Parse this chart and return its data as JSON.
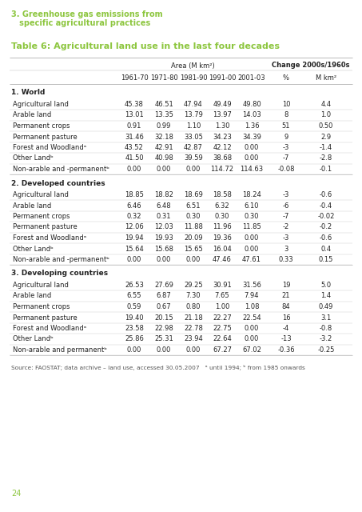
{
  "page_title_line1": "3. Greenhouse gas emissions from",
  "page_title_line2": "   specific agricultural practices",
  "table_title": "Table 6: Agricultural land use in the last four decades",
  "header_group1": "Area (M km²)",
  "header_group2": "Change 2000s/1960s",
  "col_headers": [
    "1961-70",
    "1971-80",
    "1981-90",
    "1991-00",
    "2001-03",
    "%",
    "M km²"
  ],
  "sections": [
    {
      "title": "1. World",
      "rows": [
        [
          "Agricultural land",
          "45.38",
          "46.51",
          "47.94",
          "49.49",
          "49.80",
          "10",
          "4.4"
        ],
        [
          "Arable land",
          "13.01",
          "13.35",
          "13.79",
          "13.97",
          "14.03",
          "8",
          "1.0"
        ],
        [
          "Permanent crops",
          "0.91",
          "0.99",
          "1.10",
          "1.30",
          "1.36",
          "51",
          "0.50"
        ],
        [
          "Permanent pasture",
          "31.46",
          "32.18",
          "33.05",
          "34.23",
          "34.39",
          "9",
          "2.9"
        ],
        [
          "Forest and Woodlandᵃ",
          "43.52",
          "42.91",
          "42.87",
          "42.12",
          "0.00",
          "-3",
          "-1.4"
        ],
        [
          "Other Landᵇ",
          "41.50",
          "40.98",
          "39.59",
          "38.68",
          "0.00",
          "-7",
          "-2.8"
        ],
        [
          "Non-arable and -permanentᵇ",
          "0.00",
          "0.00",
          "0.00",
          "114.72",
          "114.63",
          "-0.08",
          "-0.1"
        ]
      ]
    },
    {
      "title": "2. Developed countries",
      "rows": [
        [
          "Agricultural land",
          "18.85",
          "18.82",
          "18.69",
          "18.58",
          "18.24",
          "-3",
          "-0.6"
        ],
        [
          "Arable land",
          "6.46",
          "6.48",
          "6.51",
          "6.32",
          "6.10",
          "-6",
          "-0.4"
        ],
        [
          "Permanent crops",
          "0.32",
          "0.31",
          "0.30",
          "0.30",
          "0.30",
          "-7",
          "-0.02"
        ],
        [
          "Permanent pasture",
          "12.06",
          "12.03",
          "11.88",
          "11.96",
          "11.85",
          "-2",
          "-0.2"
        ],
        [
          "Forest and Woodlandᵃ",
          "19.94",
          "19.93",
          "20.09",
          "19.36",
          "0.00",
          "-3",
          "-0.6"
        ],
        [
          "Other Landᵇ",
          "15.64",
          "15.68",
          "15.65",
          "16.04",
          "0.00",
          "3",
          "0.4"
        ],
        [
          "Non-arable and -permanentᵇ",
          "0.00",
          "0.00",
          "0.00",
          "47.46",
          "47.61",
          "0.33",
          "0.15"
        ]
      ]
    },
    {
      "title": "3. Developing countries",
      "rows": [
        [
          "Agricultural land",
          "26.53",
          "27.69",
          "29.25",
          "30.91",
          "31.56",
          "19",
          "5.0"
        ],
        [
          "Arable land",
          "6.55",
          "6.87",
          "7.30",
          "7.65",
          "7.94",
          "21",
          "1.4"
        ],
        [
          "Permanent crops",
          "0.59",
          "0.67",
          "0.80",
          "1.00",
          "1.08",
          "84",
          "0.49"
        ],
        [
          "Permanent pasture",
          "19.40",
          "20.15",
          "21.18",
          "22.27",
          "22.54",
          "16",
          "3.1"
        ],
        [
          "Forest and Woodlandᵃ",
          "23.58",
          "22.98",
          "22.78",
          "22.75",
          "0.00",
          "-4",
          "-0.8"
        ],
        [
          "Other Landᵇ",
          "25.86",
          "25.31",
          "23.94",
          "22.64",
          "0.00",
          "-13",
          "-3.2"
        ],
        [
          "Non-arable and permanentᵇ",
          "0.00",
          "0.00",
          "0.00",
          "67.27",
          "67.02",
          "-0.36",
          "-0.25"
        ]
      ]
    }
  ],
  "footnote": "Source: FAOSTAT; data archive – land use, accessed 30.05.2007   ᵃ until 1994; ᵇ from 1985 onwards",
  "page_num": "24",
  "title_color": "#8dc63f",
  "table_title_color": "#8dc63f",
  "bg_color": "#ffffff",
  "text_color": "#222222",
  "line_color": "#bbbbbb"
}
